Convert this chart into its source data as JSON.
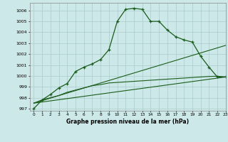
{
  "title": "Graphe pression niveau de la mer (hPa)",
  "bg_color": "#cce8e8",
  "grid_color": "#aacccc",
  "line_color": "#1a5c1a",
  "xlim": [
    -0.5,
    23
  ],
  "ylim": [
    996.8,
    1006.7
  ],
  "yticks": [
    997,
    998,
    999,
    1000,
    1001,
    1002,
    1003,
    1004,
    1005,
    1006
  ],
  "xticks": [
    0,
    1,
    2,
    3,
    4,
    5,
    6,
    7,
    8,
    9,
    10,
    11,
    12,
    13,
    14,
    15,
    16,
    17,
    18,
    19,
    20,
    21,
    22,
    23
  ],
  "series1_x": [
    0,
    1,
    2,
    3,
    4,
    5,
    6,
    7,
    8,
    9,
    10,
    11,
    12,
    13,
    14,
    15,
    16,
    17,
    18,
    19,
    20,
    21,
    22,
    23
  ],
  "series1_y": [
    997.0,
    997.8,
    998.3,
    998.9,
    999.3,
    1000.4,
    1000.8,
    1001.1,
    1001.5,
    1002.4,
    1005.0,
    1006.1,
    1006.2,
    1006.1,
    1005.0,
    1005.0,
    1004.2,
    1003.6,
    1003.3,
    1003.1,
    1001.8,
    1000.8,
    999.9,
    999.9
  ],
  "series2_x": [
    0,
    1,
    2,
    3,
    4,
    5,
    6,
    7,
    8,
    9,
    10,
    11,
    12,
    13,
    14,
    15,
    16,
    17,
    18,
    19,
    20,
    21,
    22,
    23
  ],
  "series2_y": [
    997.5,
    997.8,
    998.0,
    998.2,
    998.5,
    998.7,
    998.9,
    999.1,
    999.2,
    999.35,
    999.4,
    999.45,
    999.5,
    999.55,
    999.6,
    999.65,
    999.7,
    999.75,
    999.8,
    999.85,
    999.9,
    999.95,
    999.97,
    999.9
  ],
  "series3_x": [
    0,
    23
  ],
  "series3_y": [
    997.5,
    1002.8
  ],
  "series4_x": [
    0,
    23
  ],
  "series4_y": [
    997.5,
    999.9
  ]
}
